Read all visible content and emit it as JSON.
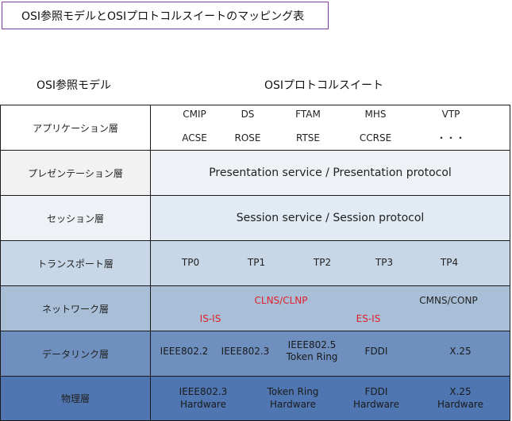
{
  "title": "OSI参照モデルとOSIプロトコルスイートのマッピング表",
  "headers": {
    "osi_model": "OSI参照モデル",
    "osi_suite": "OSIプロトコルスイート"
  },
  "colors": {
    "application": "#ffffff",
    "presentation": "#eef2f6",
    "session": "#e2ebf3",
    "transport": "#c8d7e7",
    "network": "#a9bfd8",
    "datalink": "#6f8fbf",
    "physical": "#4f76b0",
    "label_presentation": "#f2f2f2",
    "red_text": "#e0202a"
  },
  "layers": {
    "application": {
      "label": "アプリケーション層",
      "top": [
        "CMIP",
        "DS",
        "FTAM",
        "MHS",
        "VTP"
      ],
      "bottom": [
        "ACSE",
        "ROSE",
        "RTSE",
        "CCRSE",
        "・・・"
      ]
    },
    "presentation": {
      "label": "プレゼンテーション層",
      "text": "Presentation service / Presentation protocol"
    },
    "session": {
      "label": "セッション層",
      "text": "Session service / Session protocol"
    },
    "transport": {
      "label": "トランスポート層",
      "items": [
        "TP0",
        "TP1",
        "TP2",
        "TP3",
        "TP4"
      ]
    },
    "network": {
      "label": "ネットワーク層",
      "clns": "CLNS/CLNP",
      "cmns": "CMNS/CONP",
      "isis": "IS-IS",
      "esis": "ES-IS"
    },
    "datalink": {
      "label": "データリンク層",
      "items": [
        "IEEE802.2",
        "IEEE802.3",
        "IEEE802.5",
        "Token Ring",
        "FDDI",
        "X.25"
      ]
    },
    "physical": {
      "label": "物理層",
      "items": [
        "IEEE802.3",
        "Hardware",
        "Token Ring",
        "Hardware",
        "FDDI",
        "Hardware",
        "X.25",
        "Hardware"
      ]
    }
  }
}
